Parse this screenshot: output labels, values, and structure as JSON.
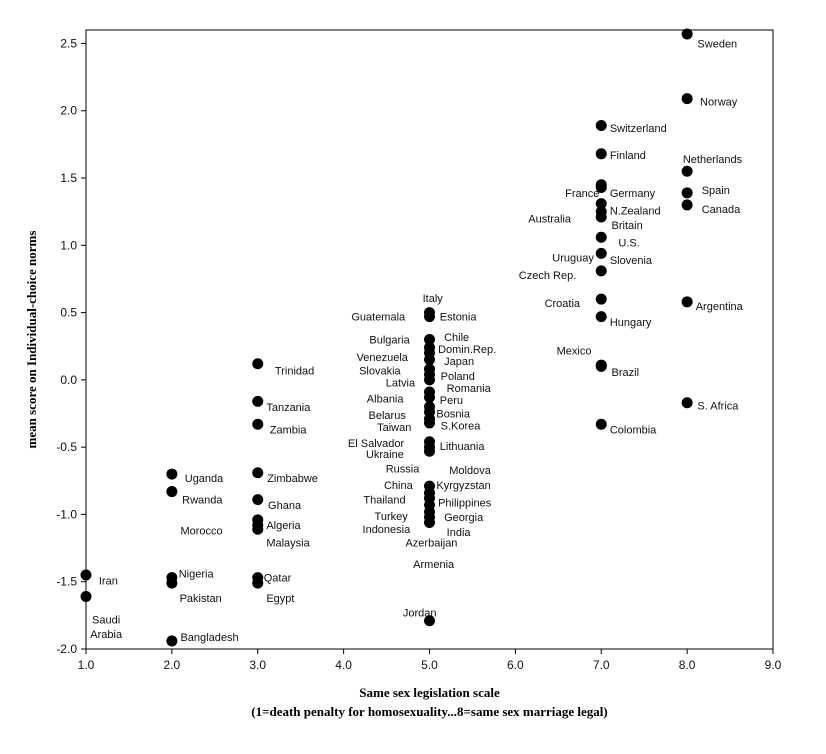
{
  "chart_data": {
    "type": "scatter",
    "title": "",
    "xlabel": "Same sex legislation scale",
    "xlabel_line2": "(1=death penalty for homosexuality...8=same sex marriage legal)",
    "ylabel": "mean score on Individual-choice norms",
    "xlim": [
      1.0,
      9.0
    ],
    "ylim": [
      -2.0,
      2.6
    ],
    "x_ticks": [
      1.0,
      2.0,
      3.0,
      4.0,
      5.0,
      6.0,
      7.0,
      8.0,
      9.0
    ],
    "x_tick_labels": [
      "1.0",
      "2.0",
      "3.0",
      "4.0",
      "5.0",
      "6.0",
      "7.0",
      "8.0",
      "9.0"
    ],
    "y_ticks": [
      -2.0,
      -1.5,
      -1.0,
      -0.5,
      0.0,
      0.5,
      1.0,
      1.5,
      2.0,
      2.5
    ],
    "y_tick_labels": [
      "-2.0",
      "-1.5",
      "-1.0",
      "-0.5",
      "0.0",
      "0.5",
      "1.0",
      "1.5",
      "2.0",
      "2.5"
    ],
    "grid": false,
    "legend": "none",
    "marker_color": "#000000",
    "points": [
      {
        "x": 8,
        "y": 2.57
      },
      {
        "x": 8,
        "y": 2.09
      },
      {
        "x": 8,
        "y": 1.55
      },
      {
        "x": 8,
        "y": 1.39
      },
      {
        "x": 8,
        "y": 1.3
      },
      {
        "x": 8,
        "y": 0.58
      },
      {
        "x": 8,
        "y": -0.17
      },
      {
        "x": 7,
        "y": 1.89
      },
      {
        "x": 7,
        "y": 1.68
      },
      {
        "x": 7,
        "y": 1.45
      },
      {
        "x": 7,
        "y": 1.43
      },
      {
        "x": 7,
        "y": 1.31
      },
      {
        "x": 7,
        "y": 1.25
      },
      {
        "x": 7,
        "y": 1.21
      },
      {
        "x": 7,
        "y": 1.06
      },
      {
        "x": 7,
        "y": 0.94
      },
      {
        "x": 7,
        "y": 0.81
      },
      {
        "x": 7,
        "y": 0.6
      },
      {
        "x": 7,
        "y": 0.47
      },
      {
        "x": 7,
        "y": 0.11
      },
      {
        "x": 7,
        "y": 0.1
      },
      {
        "x": 7,
        "y": -0.33
      },
      {
        "x": 5,
        "y": 0.5
      },
      {
        "x": 5,
        "y": 0.47
      },
      {
        "x": 5,
        "y": 0.3
      },
      {
        "x": 5,
        "y": 0.24
      },
      {
        "x": 5,
        "y": 0.2
      },
      {
        "x": 5,
        "y": 0.15
      },
      {
        "x": 5,
        "y": 0.08
      },
      {
        "x": 5,
        "y": 0.04
      },
      {
        "x": 5,
        "y": 0.0
      },
      {
        "x": 5,
        "y": -0.09
      },
      {
        "x": 5,
        "y": -0.13
      },
      {
        "x": 5,
        "y": -0.2
      },
      {
        "x": 5,
        "y": -0.24
      },
      {
        "x": 5,
        "y": -0.29
      },
      {
        "x": 5,
        "y": -0.32
      },
      {
        "x": 5,
        "y": -0.46
      },
      {
        "x": 5,
        "y": -0.5
      },
      {
        "x": 5,
        "y": -0.53
      },
      {
        "x": 5,
        "y": -0.79
      },
      {
        "x": 5,
        "y": -0.84
      },
      {
        "x": 5,
        "y": -0.88
      },
      {
        "x": 5,
        "y": -0.93
      },
      {
        "x": 5,
        "y": -0.98
      },
      {
        "x": 5,
        "y": -1.02
      },
      {
        "x": 5,
        "y": -1.06
      },
      {
        "x": 5,
        "y": -1.79
      },
      {
        "x": 3,
        "y": 0.12
      },
      {
        "x": 3,
        "y": -0.16
      },
      {
        "x": 3,
        "y": -0.33
      },
      {
        "x": 3,
        "y": -0.69
      },
      {
        "x": 3,
        "y": -0.89
      },
      {
        "x": 3,
        "y": -1.04
      },
      {
        "x": 3,
        "y": -1.08
      },
      {
        "x": 3,
        "y": -1.11
      },
      {
        "x": 3,
        "y": -1.47
      },
      {
        "x": 3,
        "y": -1.51
      },
      {
        "x": 2,
        "y": -0.7
      },
      {
        "x": 2,
        "y": -0.83
      },
      {
        "x": 2,
        "y": -1.47
      },
      {
        "x": 2,
        "y": -1.51
      },
      {
        "x": 2,
        "y": -1.94
      },
      {
        "x": 1,
        "y": -1.45
      },
      {
        "x": 1,
        "y": -1.61
      }
    ],
    "annotations": [
      {
        "text": "Sweden",
        "x": 8.12,
        "y": 2.5,
        "anchor": "start"
      },
      {
        "text": "Norway",
        "x": 8.15,
        "y": 2.07,
        "anchor": "start"
      },
      {
        "text": "Netherlands",
        "x": 7.95,
        "y": 1.64,
        "anchor": "start"
      },
      {
        "text": "Spain",
        "x": 8.17,
        "y": 1.41,
        "anchor": "start"
      },
      {
        "text": "Canada",
        "x": 8.17,
        "y": 1.27,
        "anchor": "start"
      },
      {
        "text": "Argentina",
        "x": 8.1,
        "y": 0.55,
        "anchor": "start"
      },
      {
        "text": "S. Africa",
        "x": 8.12,
        "y": -0.19,
        "anchor": "start"
      },
      {
        "text": "Switzerland",
        "x": 7.1,
        "y": 1.87,
        "anchor": "start"
      },
      {
        "text": "Finland",
        "x": 7.1,
        "y": 1.67,
        "anchor": "start"
      },
      {
        "text": "France",
        "x": 6.58,
        "y": 1.39,
        "anchor": "start"
      },
      {
        "text": "Germany",
        "x": 7.1,
        "y": 1.39,
        "anchor": "start"
      },
      {
        "text": "N.Zealand",
        "x": 7.1,
        "y": 1.26,
        "anchor": "start"
      },
      {
        "text": "Australia",
        "x": 6.15,
        "y": 1.2,
        "anchor": "start"
      },
      {
        "text": "Britain",
        "x": 7.12,
        "y": 1.15,
        "anchor": "start"
      },
      {
        "text": "U.S.",
        "x": 7.2,
        "y": 1.02,
        "anchor": "start"
      },
      {
        "text": "Uruguay",
        "x": 6.43,
        "y": 0.91,
        "anchor": "start"
      },
      {
        "text": "Slovenia",
        "x": 7.1,
        "y": 0.89,
        "anchor": "start"
      },
      {
        "text": "Czech Rep.",
        "x": 6.04,
        "y": 0.78,
        "anchor": "start"
      },
      {
        "text": "Croatia",
        "x": 6.34,
        "y": 0.57,
        "anchor": "start"
      },
      {
        "text": "Hungary",
        "x": 7.1,
        "y": 0.43,
        "anchor": "start"
      },
      {
        "text": "Mexico",
        "x": 6.48,
        "y": 0.22,
        "anchor": "start"
      },
      {
        "text": "Brazil",
        "x": 7.12,
        "y": 0.06,
        "anchor": "start"
      },
      {
        "text": "Colombia",
        "x": 7.1,
        "y": -0.37,
        "anchor": "start"
      },
      {
        "text": "Italy",
        "x": 4.92,
        "y": 0.61,
        "anchor": "start"
      },
      {
        "text": "Guatemala",
        "x": 4.09,
        "y": 0.47,
        "anchor": "start"
      },
      {
        "text": "Estonia",
        "x": 5.12,
        "y": 0.47,
        "anchor": "start"
      },
      {
        "text": "Bulgaria",
        "x": 4.3,
        "y": 0.3,
        "anchor": "start"
      },
      {
        "text": "Chile",
        "x": 5.17,
        "y": 0.32,
        "anchor": "start"
      },
      {
        "text": "Domin.Rep.",
        "x": 5.1,
        "y": 0.23,
        "anchor": "start"
      },
      {
        "text": "Venezuela",
        "x": 4.15,
        "y": 0.17,
        "anchor": "start"
      },
      {
        "text": "Japan",
        "x": 5.17,
        "y": 0.14,
        "anchor": "start"
      },
      {
        "text": "Slovakia",
        "x": 4.18,
        "y": 0.07,
        "anchor": "start"
      },
      {
        "text": "Poland",
        "x": 5.13,
        "y": 0.03,
        "anchor": "start"
      },
      {
        "text": "Latvia",
        "x": 4.49,
        "y": -0.02,
        "anchor": "start"
      },
      {
        "text": "Romania",
        "x": 5.2,
        "y": -0.06,
        "anchor": "start"
      },
      {
        "text": "Albania",
        "x": 4.27,
        "y": -0.14,
        "anchor": "start"
      },
      {
        "text": "Peru",
        "x": 5.12,
        "y": -0.15,
        "anchor": "start"
      },
      {
        "text": "Belarus",
        "x": 4.29,
        "y": -0.26,
        "anchor": "start"
      },
      {
        "text": "Bosnia",
        "x": 5.08,
        "y": -0.25,
        "anchor": "start"
      },
      {
        "text": "Taiwan",
        "x": 4.39,
        "y": -0.35,
        "anchor": "start"
      },
      {
        "text": "S.Korea",
        "x": 5.13,
        "y": -0.34,
        "anchor": "start"
      },
      {
        "text": "El Salvador",
        "x": 4.05,
        "y": -0.47,
        "anchor": "start"
      },
      {
        "text": "Lithuania",
        "x": 5.12,
        "y": -0.49,
        "anchor": "start"
      },
      {
        "text": "Ukraine",
        "x": 4.26,
        "y": -0.55,
        "anchor": "start"
      },
      {
        "text": "Russia",
        "x": 4.49,
        "y": -0.66,
        "anchor": "start"
      },
      {
        "text": "Moldova",
        "x": 5.23,
        "y": -0.67,
        "anchor": "start"
      },
      {
        "text": "China",
        "x": 4.47,
        "y": -0.78,
        "anchor": "start"
      },
      {
        "text": "Kyrgyzstan",
        "x": 5.08,
        "y": -0.78,
        "anchor": "start"
      },
      {
        "text": "Thailand",
        "x": 4.23,
        "y": -0.89,
        "anchor": "start"
      },
      {
        "text": "Philippines",
        "x": 5.1,
        "y": -0.91,
        "anchor": "start"
      },
      {
        "text": "Turkey",
        "x": 4.36,
        "y": -1.01,
        "anchor": "start"
      },
      {
        "text": "Georgia",
        "x": 5.17,
        "y": -1.02,
        "anchor": "start"
      },
      {
        "text": "Indonesia",
        "x": 4.22,
        "y": -1.11,
        "anchor": "start"
      },
      {
        "text": "India",
        "x": 5.2,
        "y": -1.13,
        "anchor": "start"
      },
      {
        "text": "Azerbaijan",
        "x": 4.72,
        "y": -1.21,
        "anchor": "start"
      },
      {
        "text": "Armenia",
        "x": 4.81,
        "y": -1.37,
        "anchor": "start"
      },
      {
        "text": "Jordan",
        "x": 4.69,
        "y": -1.73,
        "anchor": "start"
      },
      {
        "text": "Trinidad",
        "x": 3.2,
        "y": 0.07,
        "anchor": "start"
      },
      {
        "text": "Tanzania",
        "x": 3.1,
        "y": -0.2,
        "anchor": "start"
      },
      {
        "text": "Zambia",
        "x": 3.14,
        "y": -0.37,
        "anchor": "start"
      },
      {
        "text": "Zimbabwe",
        "x": 3.11,
        "y": -0.73,
        "anchor": "start"
      },
      {
        "text": "Ghana",
        "x": 3.12,
        "y": -0.93,
        "anchor": "start"
      },
      {
        "text": "Algeria",
        "x": 3.1,
        "y": -1.08,
        "anchor": "start"
      },
      {
        "text": "Malaysia",
        "x": 3.1,
        "y": -1.21,
        "anchor": "start"
      },
      {
        "text": "Qatar",
        "x": 3.07,
        "y": -1.47,
        "anchor": "start"
      },
      {
        "text": "Egypt",
        "x": 3.1,
        "y": -1.62,
        "anchor": "start"
      },
      {
        "text": "Uganda",
        "x": 2.15,
        "y": -0.73,
        "anchor": "start"
      },
      {
        "text": "Rwanda",
        "x": 2.12,
        "y": -0.89,
        "anchor": "start"
      },
      {
        "text": "Morocco",
        "x": 2.1,
        "y": -1.12,
        "anchor": "start"
      },
      {
        "text": "Nigeria",
        "x": 2.08,
        "y": -1.44,
        "anchor": "start"
      },
      {
        "text": "Pakistan",
        "x": 2.09,
        "y": -1.62,
        "anchor": "start"
      },
      {
        "text": "Bangladesh",
        "x": 2.1,
        "y": -1.91,
        "anchor": "start"
      },
      {
        "text": "Iran",
        "x": 1.15,
        "y": -1.49,
        "anchor": "start"
      },
      {
        "text": "Saudi",
        "x": 1.07,
        "y": -1.78,
        "anchor": "start"
      },
      {
        "text": "Arabia",
        "x": 1.05,
        "y": -1.89,
        "anchor": "start"
      }
    ]
  }
}
